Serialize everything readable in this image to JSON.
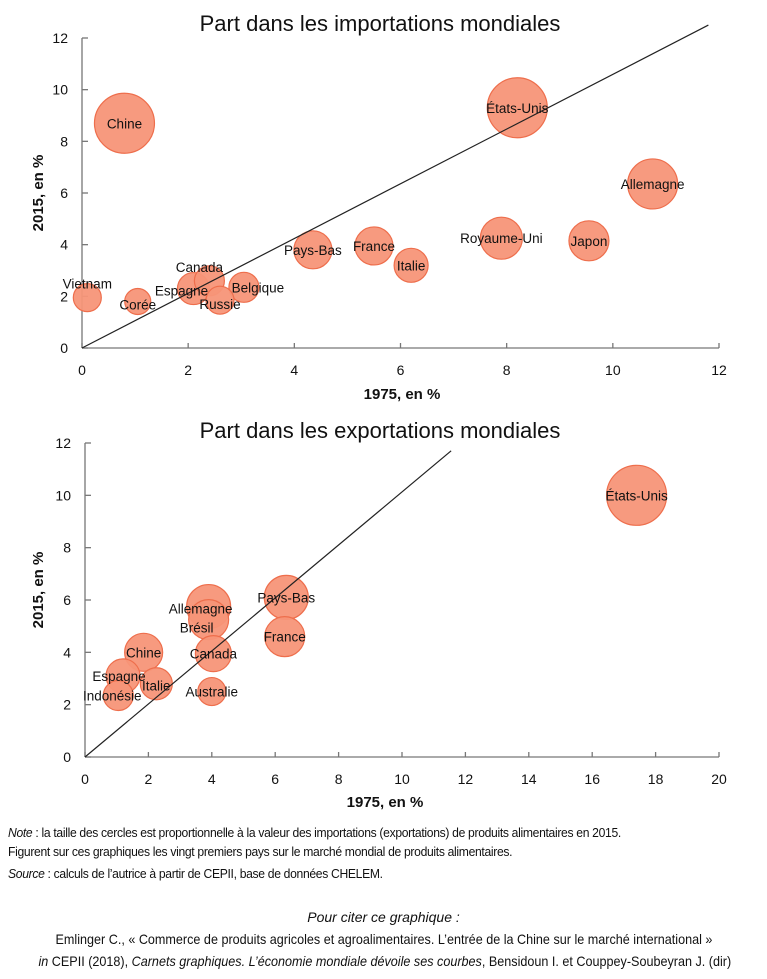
{
  "chart_data": [
    {
      "type": "scatter",
      "subtype": "bubble",
      "title": "Part dans les importations mondiales",
      "xlabel": "1975, en  %",
      "ylabel": "2015, en %",
      "xlim": [
        0,
        12
      ],
      "ylim": [
        0,
        12
      ],
      "xticks": [
        "0",
        "2",
        "4",
        "6",
        "8",
        "10",
        "12"
      ],
      "yticks": [
        "0",
        "2",
        "4",
        "6",
        "8",
        "10",
        "12"
      ],
      "grid": false,
      "reference_line": {
        "from": [
          0,
          0
        ],
        "to": [
          11.8,
          12.5
        ]
      },
      "bubble_color": "#F79578",
      "bubble_stroke": "#EE6E4C",
      "points": [
        {
          "label": "Chine",
          "x": 0.8,
          "y": 8.7,
          "size": 30
        },
        {
          "label": "États-Unis",
          "x": 8.2,
          "y": 9.3,
          "size": 30
        },
        {
          "label": "Allemagne",
          "x": 10.75,
          "y": 6.35,
          "size": 25
        },
        {
          "label": "Royaume-Uni",
          "x": 7.9,
          "y": 4.25,
          "size": 21
        },
        {
          "label": "Japon",
          "x": 9.55,
          "y": 4.15,
          "size": 20
        },
        {
          "label": "Pays-Bas",
          "x": 4.35,
          "y": 3.8,
          "size": 19
        },
        {
          "label": "France",
          "x": 5.5,
          "y": 3.95,
          "size": 19
        },
        {
          "label": "Italie",
          "x": 6.2,
          "y": 3.2,
          "size": 17
        },
        {
          "label": "Canada",
          "x": 2.4,
          "y": 2.6,
          "size": 15
        },
        {
          "label": "Espagne",
          "x": 2.1,
          "y": 2.3,
          "size": 16
        },
        {
          "label": "Belgique",
          "x": 3.05,
          "y": 2.35,
          "size": 15
        },
        {
          "label": "Russie",
          "x": 2.6,
          "y": 1.85,
          "size": 14
        },
        {
          "label": "Vietnam",
          "x": 0.1,
          "y": 1.95,
          "size": 14
        },
        {
          "label": "Corée",
          "x": 1.05,
          "y": 1.8,
          "size": 13
        }
      ]
    },
    {
      "type": "scatter",
      "subtype": "bubble",
      "title": "Part dans les exportations mondiales",
      "xlabel": "1975, en %",
      "ylabel": "2015, en  %",
      "xlim": [
        0,
        20
      ],
      "ylim": [
        0,
        12
      ],
      "xticks": [
        "0",
        "2",
        "4",
        "6",
        "8",
        "10",
        "12",
        "14",
        "16",
        "18",
        "20"
      ],
      "yticks": [
        "0",
        "2",
        "4",
        "6",
        "8",
        "10",
        "12"
      ],
      "grid": false,
      "reference_line": {
        "from": [
          0,
          0
        ],
        "to": [
          11.55,
          11.7
        ]
      },
      "bubble_color": "#F79578",
      "bubble_stroke": "#EE6E4C",
      "points": [
        {
          "label": "États-Unis",
          "x": 17.4,
          "y": 10.0,
          "size": 30
        },
        {
          "label": "Pays-Bas",
          "x": 6.35,
          "y": 6.1,
          "size": 22
        },
        {
          "label": "France",
          "x": 6.3,
          "y": 4.6,
          "size": 20
        },
        {
          "label": "Allemagne",
          "x": 3.9,
          "y": 5.75,
          "size": 22
        },
        {
          "label": "Brésil",
          "x": 3.9,
          "y": 5.25,
          "size": 20
        },
        {
          "label": "Canada",
          "x": 4.05,
          "y": 3.95,
          "size": 18
        },
        {
          "label": "Australie",
          "x": 4.0,
          "y": 2.5,
          "size": 14
        },
        {
          "label": "Chine",
          "x": 1.85,
          "y": 4.0,
          "size": 19
        },
        {
          "label": "Espagne",
          "x": 1.2,
          "y": 3.1,
          "size": 17
        },
        {
          "label": "Italie",
          "x": 2.25,
          "y": 2.8,
          "size": 16
        },
        {
          "label": "Indonésie",
          "x": 1.05,
          "y": 2.35,
          "size": 15
        }
      ]
    }
  ],
  "notes": {
    "note_label": "Note",
    "note_text": " : la taille des cercles est proportionnelle à la valeur des importations (exportations) de produits alimentaires en 2015.",
    "note_line2": "Figurent sur ces graphiques les vingt premiers pays sur le marché mondial de produits alimentaires.",
    "source_label": "Source",
    "source_text": " : calculs de l’autrice à partir de CEPII, base de données CHELEM."
  },
  "citation": {
    "heading": "Pour citer ce graphique :",
    "line1": "Emlinger C., « Commerce de produits agricoles et agroalimentaires. L’entrée de la Chine sur le marché international »",
    "line2_in": "in",
    "line2_a": " CEPII (2018), ",
    "line2_italic": "Carnets graphiques. L’économie mondiale dévoile ses courbes",
    "line2_b": ", Bensidoun I. et Couppey-Soubeyran J. (dir)"
  }
}
